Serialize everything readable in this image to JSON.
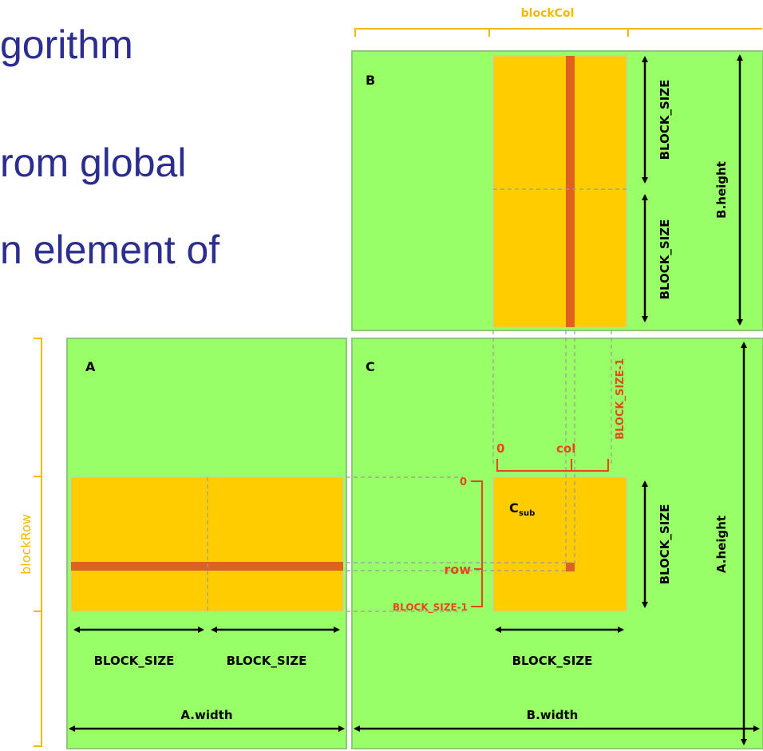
{
  "slide_text": [
    "gorithm",
    "rom global",
    "n element of"
  ],
  "matrices": {
    "a_label": "A",
    "b_label": "B",
    "c_label": "C",
    "csub_main": "C",
    "csub_sub": "sub"
  },
  "labels": {
    "block_col": "blockCol",
    "block_row": "blockRow",
    "block_size": "BLOCK_SIZE",
    "block_size_minus_1": "BLOCK_SIZE-1",
    "zero": "0",
    "col": "col",
    "row": "row",
    "a_width": "A.width",
    "b_width": "B.width",
    "a_height": "A.height",
    "b_height": "B.height"
  },
  "colors": {
    "matrix_fill": "#99ff66",
    "matrix_stroke": "#8cc97a",
    "block_fill": "#ffcc00",
    "strip_fill": "#e06020",
    "index_red": "#e8461e",
    "brace_orange": "#f5b800",
    "text_black": "#000000",
    "slide_text": "#2b2d8f"
  }
}
